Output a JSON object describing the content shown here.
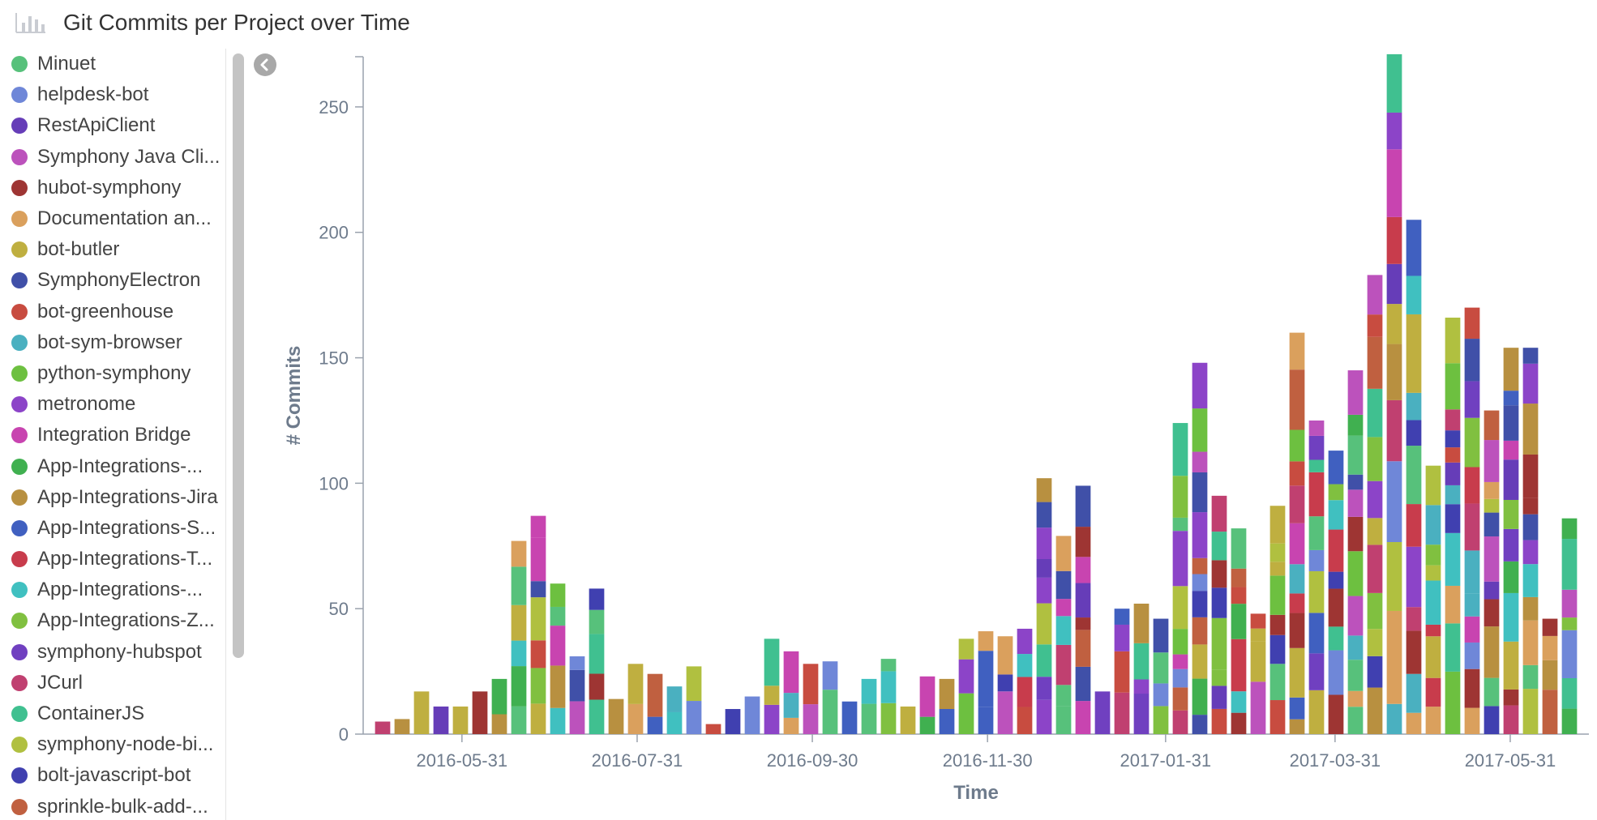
{
  "header": {
    "title": "Git Commits per Project over Time",
    "icon": "bar-chart-icon"
  },
  "legend": {
    "items": [
      {
        "label": "Minuet",
        "color": "#57c17b"
      },
      {
        "label": "helpdesk-bot",
        "color": "#6f87d8"
      },
      {
        "label": "RestApiClient",
        "color": "#663db8"
      },
      {
        "label": "Symphony Java Cli...",
        "color": "#bc52bc"
      },
      {
        "label": "hubot-symphony",
        "color": "#9e3533"
      },
      {
        "label": "Documentation an...",
        "color": "#daa05d"
      },
      {
        "label": "bot-butler",
        "color": "#bfaf40"
      },
      {
        "label": "SymphonyElectron",
        "color": "#4050a8"
      },
      {
        "label": "bot-greenhouse",
        "color": "#c84c40"
      },
      {
        "label": "bot-sym-browser",
        "color": "#4ab0c0"
      },
      {
        "label": "python-symphony",
        "color": "#6dc040"
      },
      {
        "label": "metronome",
        "color": "#8c44c8"
      },
      {
        "label": "Integration Bridge",
        "color": "#c844b0"
      },
      {
        "label": "App-Integrations-...",
        "color": "#40b050"
      },
      {
        "label": "App-Integrations-Jira",
        "color": "#b89040"
      },
      {
        "label": "App-Integrations-S...",
        "color": "#4060c0"
      },
      {
        "label": "App-Integrations-T...",
        "color": "#c83c4c"
      },
      {
        "label": "App-Integrations-...",
        "color": "#40c0c0"
      },
      {
        "label": "App-Integrations-Z...",
        "color": "#80c040"
      },
      {
        "label": "symphony-hubspot",
        "color": "#7040c0"
      },
      {
        "label": "JCurl",
        "color": "#c04070"
      },
      {
        "label": "ContainerJS",
        "color": "#40c090"
      },
      {
        "label": "symphony-node-bi...",
        "color": "#b0c040"
      },
      {
        "label": "bolt-javascript-bot",
        "color": "#4040b0"
      },
      {
        "label": "sprinkle-bulk-add-...",
        "color": "#c06040"
      }
    ]
  },
  "chart_data": {
    "type": "bar",
    "stacked": true,
    "title": "Git Commits per Project over Time",
    "xlabel": "Time",
    "ylabel": "# Commits",
    "ylim": [
      0,
      270
    ],
    "y_ticks": [
      0,
      50,
      100,
      150,
      200,
      250
    ],
    "x_ticks": [
      "2016-05-31",
      "2016-07-31",
      "2016-09-30",
      "2016-11-30",
      "2017-01-31",
      "2017-03-31",
      "2017-05-31"
    ],
    "interval": "weekly",
    "x_start": "2016-04-30",
    "x_end": "2017-06-24",
    "totals": [
      5,
      6,
      17,
      11,
      11,
      17,
      22,
      77,
      87,
      60,
      31,
      58,
      14,
      28,
      24,
      19,
      27,
      4,
      10,
      15,
      38,
      33,
      28,
      29,
      13,
      22,
      30,
      11,
      23,
      22,
      38,
      41,
      39,
      42,
      102,
      79,
      99,
      17,
      50,
      52,
      46,
      124,
      148,
      95,
      82,
      48,
      91,
      160,
      125,
      113,
      145,
      183,
      271,
      205,
      107,
      166,
      170,
      129,
      154,
      154,
      46,
      86
    ],
    "grid": false,
    "legend": "left"
  }
}
